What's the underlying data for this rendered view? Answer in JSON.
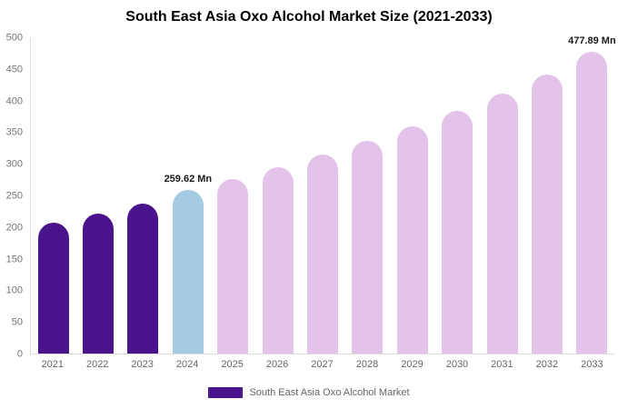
{
  "title": "South East Asia Oxo Alcohol Market Size (2021-2033)",
  "legend": {
    "swatch_color": "#4a148c",
    "label": "South East Asia Oxo Alcohol Market"
  },
  "chart_data": {
    "type": "bar",
    "title": "South East Asia Oxo Alcohol Market Size (2021-2033)",
    "unit": "Mn",
    "categories": [
      "2021",
      "2022",
      "2023",
      "2024",
      "2025",
      "2026",
      "2027",
      "2028",
      "2029",
      "2030",
      "2031",
      "2032",
      "2033"
    ],
    "values": [
      208,
      222,
      238,
      259.62,
      276,
      295,
      315,
      337,
      360,
      385,
      412,
      442,
      477.89
    ],
    "bar_colors": [
      "#4a148c",
      "#4a148c",
      "#4a148c",
      "#a5cbe2",
      "#e3c3e9",
      "#e3c3e9",
      "#e3c3e9",
      "#e3c3e9",
      "#e3c3e9",
      "#e3c3e9",
      "#e3c3e9",
      "#e3c3e9",
      "#e3c3e9"
    ],
    "ylim": [
      0,
      500
    ],
    "yticks": [
      0,
      50,
      100,
      150,
      200,
      250,
      300,
      350,
      400,
      450,
      500
    ],
    "annotations": [
      {
        "index": 3,
        "text": "259.62 Mn"
      },
      {
        "index": 12,
        "text": "477.89 Mn"
      }
    ],
    "legend": [
      "South East Asia Oxo Alcohol Market"
    ],
    "legend_position": "bottom",
    "grid": false
  }
}
